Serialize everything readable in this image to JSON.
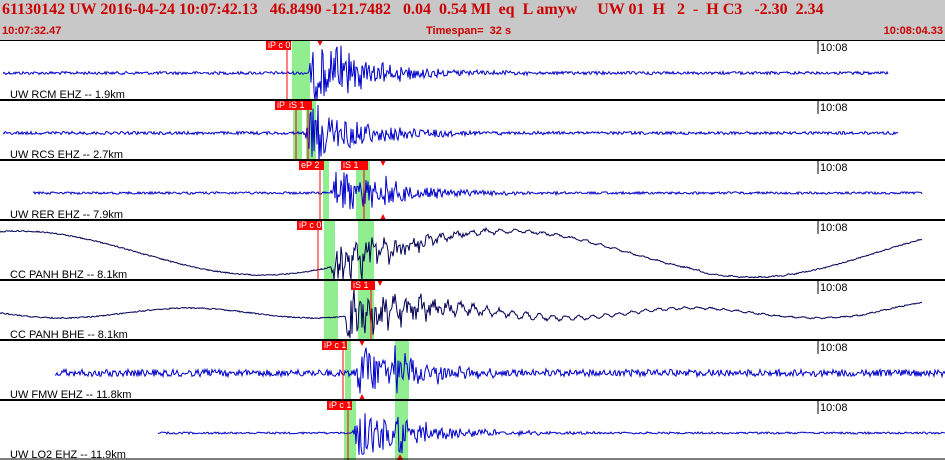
{
  "header": {
    "line": "61130142 UW 2016-04-24 10:07:42.13   46.8490 -121.7482   0.04  0.54 Ml  eq  L amyw     UW 01  H   2  -  H C3   -2.30  2.34",
    "start_time": "10:07:32.47",
    "timespan": "Timespan=  32 s",
    "end_time": "10:08:04.33"
  },
  "colors": {
    "header_bg": "#c8c8c8",
    "header_text": "#cc0000",
    "trace_uw": "#0000cc",
    "trace_cc": "#000055",
    "pick": "#ff0000",
    "window": "#90ee90"
  },
  "traces": [
    {
      "label": "UW RCM EHZ -- 1.9km",
      "time_mark": "10:08",
      "picks": [
        "iP c 0"
      ]
    },
    {
      "label": "UW RCS EHZ -- 2.7km",
      "time_mark": "10:08",
      "picks": [
        "iP",
        "iS 1"
      ]
    },
    {
      "label": "UW RER EHZ -- 7.9km",
      "time_mark": "10:08",
      "picks": [
        "eP 2",
        "iS 1"
      ]
    },
    {
      "label": "CC PANH BHZ -- 8.1km",
      "time_mark": "10:08",
      "picks": [
        "iP c 0"
      ]
    },
    {
      "label": "CC PANH BHE -- 8.1km",
      "time_mark": "10:08",
      "picks": [
        "iS 1"
      ]
    },
    {
      "label": "UW FMW EHZ -- 11.8km",
      "time_mark": "10:08",
      "picks": [
        "iP c 1"
      ]
    },
    {
      "label": "UW LO2 EHZ -- 11.9km",
      "time_mark": "10:08",
      "picks": [
        "iP c 1"
      ]
    }
  ]
}
